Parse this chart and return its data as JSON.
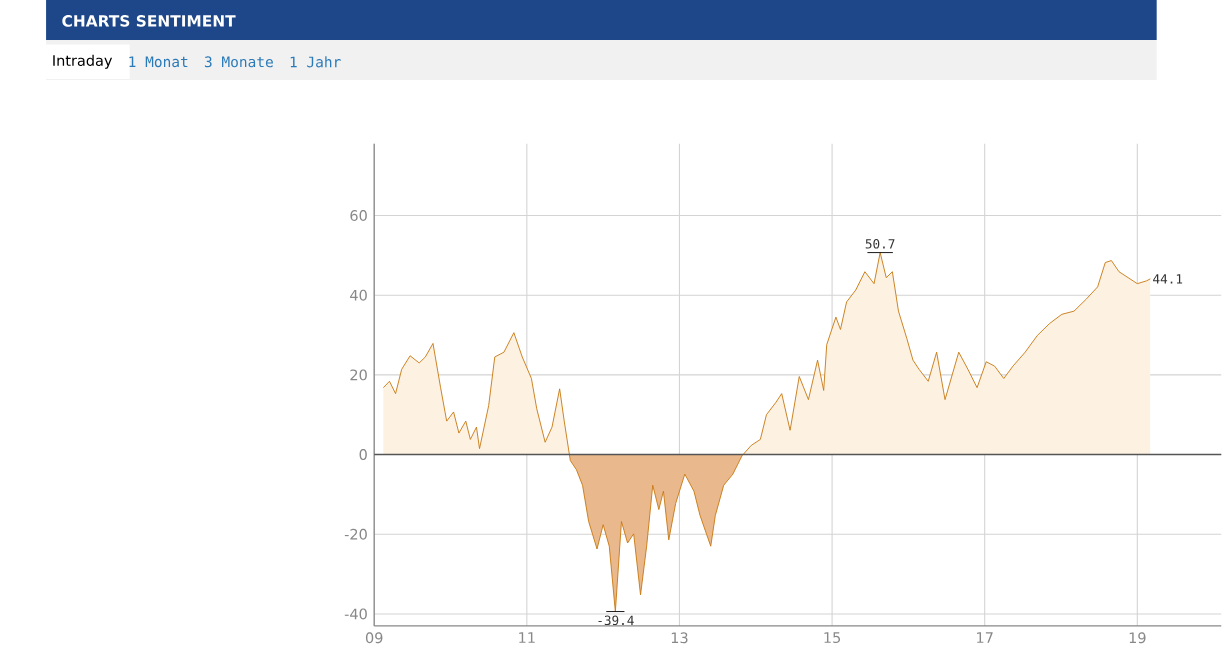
{
  "chart_data": {
    "type": "area",
    "title": "CHARTS SENTIMENT",
    "x": [
      9.12,
      9.2,
      9.28,
      9.36,
      9.47,
      9.59,
      9.67,
      9.77,
      9.87,
      9.95,
      10.04,
      10.11,
      10.2,
      10.26,
      10.34,
      10.38,
      10.5,
      10.58,
      10.7,
      10.83,
      10.94,
      11.06,
      11.13,
      11.24,
      11.33,
      11.43,
      11.49,
      11.57,
      11.65,
      11.73,
      11.81,
      11.92,
      12.0,
      12.08,
      12.16,
      12.24,
      12.32,
      12.4,
      12.49,
      12.57,
      12.65,
      12.73,
      12.79,
      12.86,
      12.95,
      13.07,
      13.19,
      13.27,
      13.41,
      13.47,
      13.58,
      13.7,
      13.82,
      13.94,
      14.06,
      14.14,
      14.26,
      14.34,
      14.45,
      14.57,
      14.69,
      14.81,
      14.89,
      14.93,
      15.05,
      15.11,
      15.19,
      15.31,
      15.43,
      15.55,
      15.63,
      15.71,
      15.79,
      15.87,
      15.98,
      16.06,
      16.14,
      16.26,
      16.37,
      16.48,
      16.66,
      16.78,
      16.9,
      17.02,
      17.13,
      17.25,
      17.37,
      17.53,
      17.69,
      17.85,
      18.01,
      18.17,
      18.33,
      18.48,
      18.58,
      18.66,
      18.76,
      18.88,
      19.0,
      19.12,
      19.17
    ],
    "series": [
      {
        "color": "#c8780f",
        "values": [
          16.8,
          18.4,
          15.3,
          21.4,
          24.8,
          23,
          24.5,
          27.9,
          16.8,
          8.4,
          10.7,
          5.4,
          8.4,
          3.8,
          6.9,
          1.5,
          12.3,
          24.5,
          25.7,
          30.6,
          24.5,
          19.1,
          11.5,
          3.1,
          6.9,
          16.5,
          8.4,
          -1.5,
          -3.8,
          -7.7,
          -16.8,
          -23.7,
          -17.6,
          -23,
          -39.4,
          -16.8,
          -22.2,
          -19.9,
          -35.2,
          -23,
          -7.7,
          -13.8,
          -9.2,
          -21.4,
          -12.3,
          -4.9,
          -9.2,
          -15.3,
          -23,
          -15.3,
          -7.7,
          -4.9,
          -0.3,
          2.3,
          3.8,
          10,
          13,
          15.3,
          6.1,
          19.6,
          13.8,
          23.7,
          16.1,
          27.6,
          34.5,
          31.4,
          38.3,
          41.3,
          45.9,
          42.9,
          50.7,
          44.4,
          45.9,
          36,
          29.1,
          23.7,
          21.4,
          18.4,
          25.7,
          13.8,
          25.7,
          21.4,
          16.8,
          23.3,
          22.2,
          19.1,
          22.2,
          25.7,
          29.9,
          32.9,
          35.2,
          36,
          39,
          42.1,
          48.2,
          48.7,
          45.9,
          44.4,
          42.9,
          43.6,
          44.1
        ]
      }
    ],
    "colors": [
      "#fdf1e2",
      "#e9b98d"
    ],
    "xlim": [
      9,
      20.1
    ],
    "xticks": [
      {
        "value": 9,
        "label": "09"
      },
      11,
      13,
      15,
      17,
      19
    ],
    "ylim": [
      -43,
      78
    ],
    "yticks": [
      -40,
      -20,
      0,
      20,
      40,
      60
    ],
    "grid": true,
    "ref_lines": [
      {
        "axis": "y",
        "value": 0,
        "color": "#555555"
      }
    ],
    "annotations": [
      "Intraday",
      "1 Monat",
      "3 Monate",
      "1 Jahr",
      {
        "text": "-39.4",
        "x": 12.16,
        "y": -39.4
      },
      {
        "text": "50.7",
        "x": 15.63,
        "y": 50.7
      },
      {
        "text": "44.1",
        "x": 19.17,
        "y": 44.1
      }
    ]
  }
}
